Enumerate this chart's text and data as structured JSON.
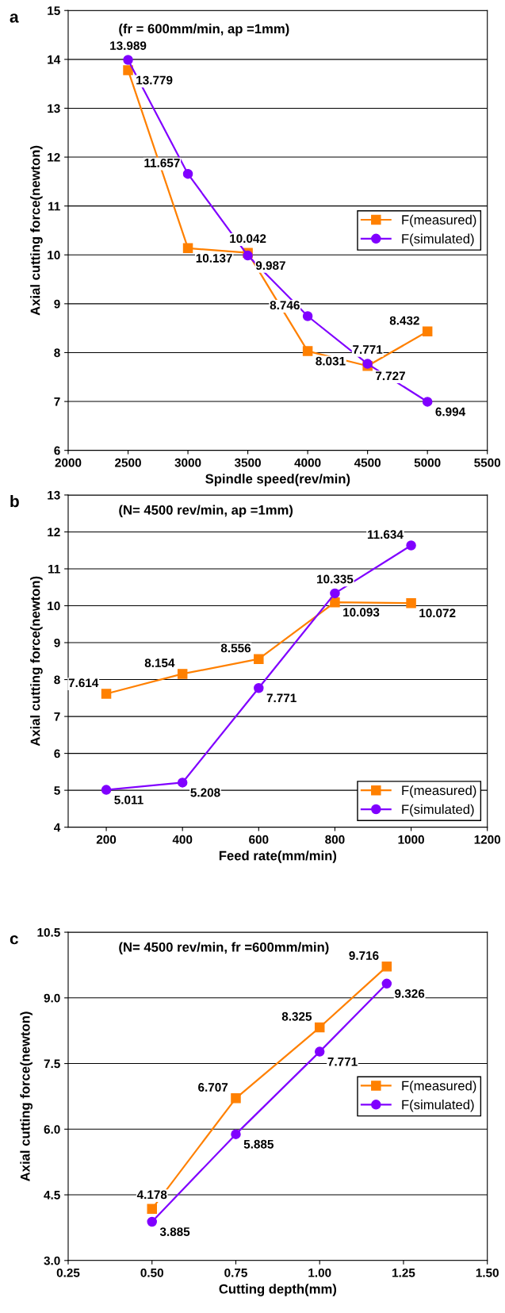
{
  "chart_data": [
    {
      "type": "line",
      "title": "a",
      "subtitle": "(fr = 600mm/min, ap =1mm)",
      "xlabel": "Spindle speed(rev/min)",
      "ylabel": "Axial cutting force(newton)",
      "x": [
        2500,
        3000,
        3500,
        4000,
        4500,
        5000
      ],
      "series": [
        {
          "name": "F(measured)",
          "color": "#ff8000",
          "marker": "square",
          "values": [
            13.779,
            10.137,
            10.042,
            8.031,
            7.727,
            8.432
          ]
        },
        {
          "name": "F(simulated)",
          "color": "#8000ff",
          "marker": "circle",
          "values": [
            13.989,
            11.657,
            9.987,
            8.746,
            7.771,
            6.994
          ]
        }
      ],
      "xlim": [
        2000,
        5500
      ],
      "xticks": [
        2000,
        2500,
        3000,
        3500,
        4000,
        4500,
        5000,
        5500
      ],
      "ylim": [
        6,
        15
      ],
      "yticks": [
        6,
        7,
        8,
        9,
        10,
        11,
        12,
        13,
        14,
        15
      ],
      "grid": "y",
      "legend": "right",
      "data_labels": true,
      "line_style": "solid"
    },
    {
      "type": "line",
      "title": "b",
      "subtitle": "(N= 4500 rev/min, ap =1mm)",
      "xlabel": "Feed rate(mm/min)",
      "ylabel": "Axial cutting force(newton)",
      "x": [
        200,
        400,
        600,
        800,
        1000
      ],
      "series": [
        {
          "name": "F(measured)",
          "color": "#ff8000",
          "marker": "square",
          "values": [
            7.614,
            8.154,
            8.556,
            10.093,
            10.072
          ]
        },
        {
          "name": "F(simulated)",
          "color": "#8000ff",
          "marker": "circle",
          "values": [
            5.011,
            5.208,
            7.771,
            10.335,
            11.634
          ]
        }
      ],
      "xlim": [
        100,
        1200
      ],
      "xticks": [
        200,
        400,
        600,
        800,
        1000,
        1200
      ],
      "ylim": [
        4,
        13
      ],
      "yticks": [
        4,
        5,
        6,
        7,
        8,
        9,
        10,
        11,
        12,
        13
      ],
      "grid": "y",
      "legend": "bottom right",
      "data_labels": true,
      "line_style": "solid"
    },
    {
      "type": "line",
      "title": "c",
      "subtitle": "(N= 4500 rev/min, fr =600mm/min)",
      "xlabel": "Cutting depth(mm)",
      "ylabel": "Axial cutting force(newton)",
      "x": [
        0.5,
        0.75,
        1.0,
        1.2
      ],
      "series": [
        {
          "name": "F(measured)",
          "color": "#ff8000",
          "marker": "square",
          "values": [
            4.178,
            6.707,
            8.325,
            9.716
          ]
        },
        {
          "name": "F(simulated)",
          "color": "#8000ff",
          "marker": "circle",
          "values": [
            3.885,
            5.885,
            7.771,
            9.326
          ]
        }
      ],
      "xlim": [
        0.25,
        1.5
      ],
      "xticks": [
        {
          "value": 0.25,
          "label": "0.25"
        },
        {
          "value": 0.5,
          "label": "0.50"
        },
        {
          "value": 0.75,
          "label": "0.75"
        },
        {
          "value": 1.0,
          "label": "1.00"
        },
        {
          "value": 1.25,
          "label": "1.25"
        },
        {
          "value": 1.5,
          "label": "1.50"
        }
      ],
      "ylim": [
        3.0,
        10.5
      ],
      "yticks": [
        {
          "value": 3.0,
          "label": "3.0"
        },
        {
          "value": 4.5,
          "label": "4.5"
        },
        {
          "value": 6.0,
          "label": "6.0"
        },
        {
          "value": 7.5,
          "label": "7.5"
        },
        {
          "value": 9.0,
          "label": "9.0"
        },
        {
          "value": 10.5,
          "label": "10.5"
        }
      ],
      "grid": "y",
      "legend": "right",
      "data_labels": true,
      "line_style": "solid"
    }
  ]
}
